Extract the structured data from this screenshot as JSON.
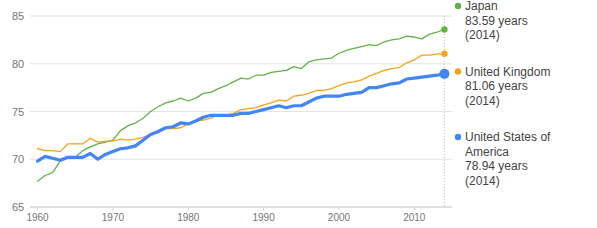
{
  "chart_data": {
    "type": "line",
    "x": [
      1960,
      1961,
      1962,
      1963,
      1964,
      1965,
      1966,
      1967,
      1968,
      1969,
      1970,
      1971,
      1972,
      1973,
      1974,
      1975,
      1976,
      1977,
      1978,
      1979,
      1980,
      1981,
      1982,
      1983,
      1984,
      1985,
      1986,
      1987,
      1988,
      1989,
      1990,
      1991,
      1992,
      1993,
      1994,
      1995,
      1996,
      1997,
      1998,
      1999,
      2000,
      2001,
      2002,
      2003,
      2004,
      2005,
      2006,
      2007,
      2008,
      2009,
      2010,
      2011,
      2012,
      2013,
      2014
    ],
    "series": [
      {
        "name": "Japan",
        "color": "#62b346",
        "line_style": "solid",
        "marker": "circle",
        "values": [
          67.7,
          68.3,
          68.6,
          69.8,
          70.1,
          70.2,
          70.9,
          71.3,
          71.6,
          71.8,
          72.0,
          73.0,
          73.5,
          73.8,
          74.3,
          75.0,
          75.5,
          75.9,
          76.1,
          76.4,
          76.1,
          76.4,
          76.9,
          77.0,
          77.4,
          77.7,
          78.1,
          78.5,
          78.4,
          78.8,
          78.8,
          79.1,
          79.2,
          79.3,
          79.7,
          79.5,
          80.2,
          80.4,
          80.5,
          80.6,
          81.1,
          81.4,
          81.6,
          81.8,
          82.0,
          81.9,
          82.3,
          82.5,
          82.6,
          82.9,
          82.8,
          82.6,
          83.1,
          83.3,
          83.59
        ]
      },
      {
        "name": "United Kingdom",
        "color": "#f5a11c",
        "line_style": "solid",
        "marker": "circle",
        "values": [
          71.1,
          70.9,
          70.9,
          70.8,
          71.6,
          71.6,
          71.6,
          72.2,
          71.8,
          71.9,
          71.9,
          72.1,
          72.0,
          72.1,
          72.3,
          72.6,
          72.8,
          73.2,
          73.2,
          73.3,
          73.7,
          74.0,
          74.1,
          74.3,
          74.7,
          74.6,
          74.8,
          75.2,
          75.3,
          75.4,
          75.7,
          75.9,
          76.2,
          76.1,
          76.6,
          76.7,
          76.9,
          77.2,
          77.2,
          77.4,
          77.7,
          78.0,
          78.1,
          78.3,
          78.7,
          79.0,
          79.3,
          79.5,
          79.6,
          80.1,
          80.4,
          80.9,
          80.9,
          81.0,
          81.06
        ]
      },
      {
        "name": "United States of America",
        "color": "#4285f4",
        "line_style": "bold",
        "marker": "circle",
        "values": [
          69.8,
          70.3,
          70.1,
          69.9,
          70.2,
          70.2,
          70.2,
          70.6,
          70.0,
          70.5,
          70.8,
          71.1,
          71.2,
          71.4,
          72.0,
          72.6,
          72.9,
          73.3,
          73.4,
          73.8,
          73.7,
          74.0,
          74.4,
          74.6,
          74.6,
          74.6,
          74.6,
          74.8,
          74.8,
          75.0,
          75.2,
          75.4,
          75.6,
          75.4,
          75.6,
          75.6,
          76.0,
          76.4,
          76.6,
          76.6,
          76.6,
          76.8,
          76.9,
          77.0,
          77.5,
          77.5,
          77.7,
          77.9,
          78.0,
          78.4,
          78.5,
          78.6,
          78.7,
          78.8,
          78.94
        ]
      }
    ],
    "annotations": [
      [
        "83.59 years",
        "(2014)"
      ],
      [
        "81.06 years",
        "(2014)"
      ],
      [
        "78.94 years",
        "(2014)"
      ]
    ],
    "xlim": [
      1959,
      2015
    ],
    "xticks": [
      1960,
      1970,
      1980,
      1990,
      2000,
      2010
    ],
    "ylim": [
      65,
      85
    ],
    "yticks": [
      65,
      70,
      75,
      80,
      85
    ],
    "grid": true,
    "legend": "right"
  }
}
